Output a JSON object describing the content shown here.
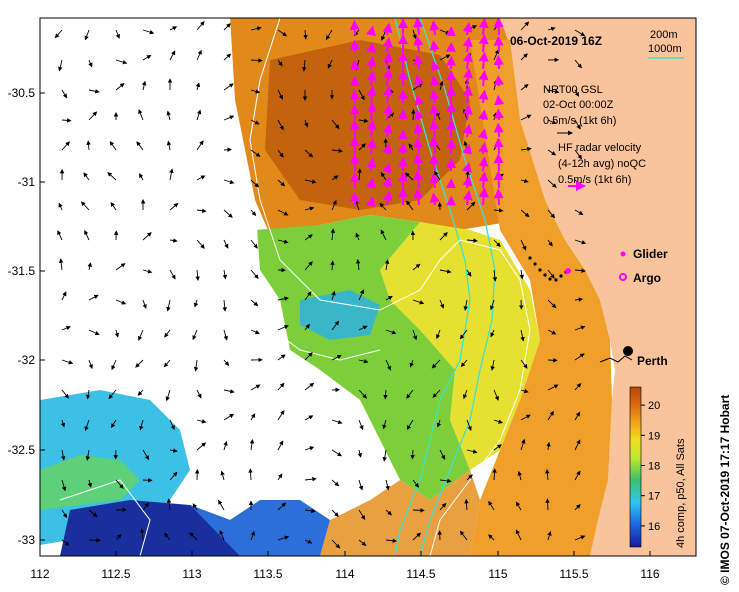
{
  "title": "06-Oct-2019 16Z",
  "credit": "© IMOS 07-Oct-2019 17:17 Hobart",
  "isobaths": {
    "label_a": "200m",
    "label_b": "1000m"
  },
  "legend": {
    "gsl_line1": "NRT00 GSL",
    "gsl_line2": "02-Oct 00:00Z",
    "gsl_scale": "0.5m/s (1kt 6h)",
    "hf_line1": "HF radar velocity",
    "hf_line2": "(4-12h avg) noQC",
    "hf_scale": "0.5m/s (1kt 6h)",
    "glider": "Glider",
    "argo": "Argo"
  },
  "city": "Perth",
  "colorbar": {
    "label": "4h comp, p50, All Sats",
    "ticks": [
      "16",
      "17",
      "18",
      "19",
      "20"
    ],
    "range": [
      15.3,
      20.6
    ]
  },
  "axes": {
    "xticks": [
      "112",
      "112.5",
      "113",
      "113.5",
      "114",
      "114.5",
      "115",
      "115.5",
      "116"
    ],
    "yticks": [
      "-30.5",
      "-31",
      "-31.5",
      "-32",
      "-32.5",
      "-33"
    ]
  },
  "colors": {
    "land": "#f9c49b",
    "hf_vectors": "#ff00ff",
    "isobath": "#40e0d0"
  }
}
